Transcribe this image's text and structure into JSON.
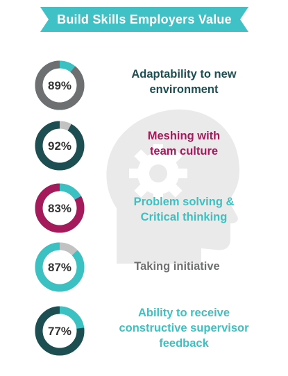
{
  "title": "Build Skills Employers Value",
  "colors": {
    "banner": "#3fc1c5",
    "gray": "#6d6f70",
    "light_gray": "#c2c2c2",
    "dark_teal": "#1d4e52",
    "magenta": "#a51a5a",
    "teal": "#3cc1c2",
    "head_silhouette": "#eaeaea"
  },
  "chart_data": {
    "type": "donut",
    "title": "Build Skills Employers Value",
    "series": [
      {
        "label_lines": [
          "Adaptability to new",
          "environment"
        ],
        "value": 89,
        "display": "89%",
        "color": "#6d6f70",
        "remainder_color": "#3cc1c2",
        "label_color": "#1d4e52"
      },
      {
        "label_lines": [
          "Meshing with",
          "team culture"
        ],
        "value": 92,
        "display": "92%",
        "color": "#1d4e52",
        "remainder_color": "#c2c2c2",
        "label_color": "#a51a5a"
      },
      {
        "label_lines": [
          "Problem solving &",
          "Critical thinking"
        ],
        "value": 83,
        "display": "83%",
        "color": "#a51a5a",
        "remainder_color": "#3cc1c2",
        "label_color": "#3cc1c2"
      },
      {
        "label_lines": [
          "Taking initiative"
        ],
        "value": 87,
        "display": "87%",
        "color": "#3cc1c2",
        "remainder_color": "#c2c2c2",
        "label_color": "#6d6f70"
      },
      {
        "label_lines": [
          "Ability to receive",
          "constructive supervisor",
          "feedback"
        ],
        "value": 77,
        "display": "77%",
        "color": "#1d4e52",
        "remainder_color": "#3cc1c2",
        "label_color": "#3cc1c2"
      }
    ]
  }
}
